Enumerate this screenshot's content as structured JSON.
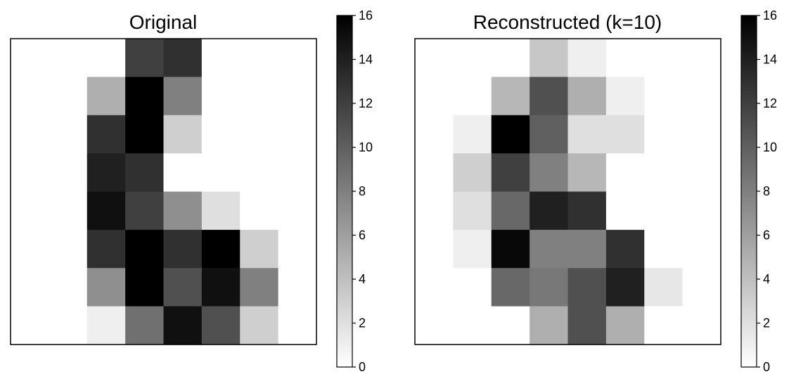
{
  "chart_data": [
    {
      "type": "heatmap",
      "title": "Original",
      "colormap": "gray_r",
      "vmin": 0,
      "vmax": 16,
      "colorbar_ticks": [
        "0",
        "2",
        "4",
        "6",
        "8",
        "10",
        "12",
        "14",
        "16"
      ],
      "rows": 8,
      "cols": 8,
      "values": [
        [
          0,
          0,
          0,
          12,
          13,
          0,
          0,
          0
        ],
        [
          0,
          0,
          5,
          16,
          8,
          0,
          0,
          0
        ],
        [
          0,
          0,
          13,
          16,
          3,
          0,
          0,
          0
        ],
        [
          0,
          0,
          14,
          13,
          0,
          0,
          0,
          0
        ],
        [
          0,
          0,
          15,
          12,
          7,
          2,
          0,
          0
        ],
        [
          0,
          0,
          13,
          16,
          13,
          16,
          3,
          0
        ],
        [
          0,
          0,
          7,
          16,
          11,
          15,
          8,
          0
        ],
        [
          0,
          0,
          1,
          9,
          15,
          11,
          3,
          0
        ]
      ]
    },
    {
      "type": "heatmap",
      "title": "Reconstructed (k=10)",
      "colormap": "gray_r",
      "vmin": 0,
      "vmax": 16,
      "colorbar_ticks": [
        "0",
        "2",
        "4",
        "6",
        "8",
        "10",
        "12",
        "14",
        "16"
      ],
      "rows": 8,
      "cols": 8,
      "values": [
        [
          0,
          0,
          0,
          3.5,
          1,
          0,
          0,
          0
        ],
        [
          0,
          0,
          4.5,
          11,
          5,
          1,
          0,
          0
        ],
        [
          0,
          1,
          16,
          10,
          2,
          2,
          0,
          0
        ],
        [
          0,
          3,
          12,
          8,
          4.5,
          0,
          0,
          0
        ],
        [
          0,
          2,
          9.5,
          14,
          13,
          0,
          0,
          0
        ],
        [
          0,
          1,
          15.5,
          8,
          8,
          13,
          0,
          0
        ],
        [
          0,
          0,
          9.5,
          8.5,
          11,
          14,
          1.5,
          0
        ],
        [
          0,
          0,
          0,
          5,
          11,
          5,
          0,
          0
        ]
      ]
    }
  ]
}
